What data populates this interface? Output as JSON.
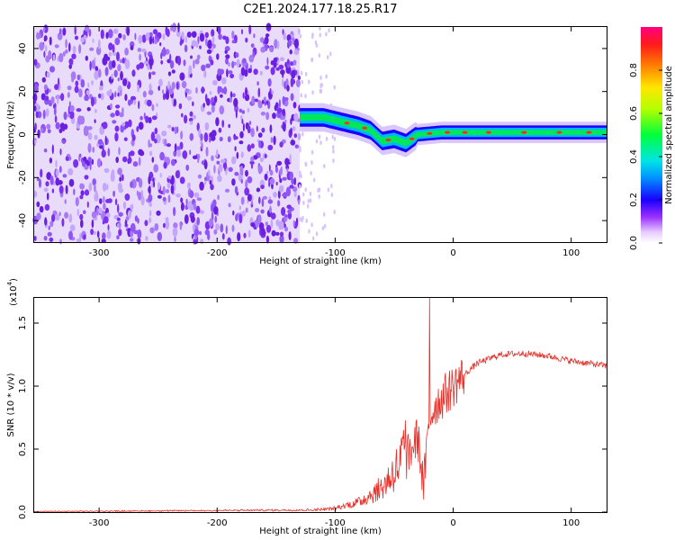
{
  "title": "C2E1.2024.177.18.25.R17",
  "chart_data": [
    {
      "type": "heatmap",
      "xlabel": "Height of straight line (km)",
      "ylabel": "Frequency (Hz)",
      "xlim": [
        -355,
        130
      ],
      "ylim": [
        -50,
        50
      ],
      "x_ticks": [
        "-300",
        "-200",
        "-100",
        "0",
        "100"
      ],
      "y_ticks": [
        "-40",
        "-20",
        "0",
        "20",
        "40"
      ],
      "colorbar": {
        "label": "Normalized spectral amplitude",
        "range": [
          0,
          1
        ],
        "ticks": [
          "0.0",
          "0.2",
          "0.4",
          "0.6",
          "0.8"
        ]
      },
      "features": {
        "noise_region_x": [
          -355,
          -130
        ],
        "signal_ridge": [
          {
            "x": -130,
            "y": 8
          },
          {
            "x": -110,
            "y": 8
          },
          {
            "x": -95,
            "y": 6
          },
          {
            "x": -80,
            "y": 4
          },
          {
            "x": -70,
            "y": 2
          },
          {
            "x": -60,
            "y": -3
          },
          {
            "x": -50,
            "y": -2
          },
          {
            "x": -40,
            "y": -4
          },
          {
            "x": -30,
            "y": 0
          },
          {
            "x": -10,
            "y": 1
          },
          {
            "x": 0,
            "y": 1
          },
          {
            "x": 50,
            "y": 1
          },
          {
            "x": 100,
            "y": 1
          },
          {
            "x": 130,
            "y": 1
          }
        ]
      }
    },
    {
      "type": "line",
      "xlabel": "Height of straight line (km)",
      "ylabel": "SNR (10 * v/v)",
      "y_scale_label": "(x10",
      "y_scale_exp": "4",
      "y_scale_close": ")",
      "xlim": [
        -355,
        130
      ],
      "ylim": [
        0,
        1.7
      ],
      "x_ticks": [
        "-300",
        "-200",
        "-100",
        "0",
        "100"
      ],
      "y_ticks": [
        "0.0",
        "0.5",
        "1.0",
        "1.5"
      ],
      "series_color": "#e8302a",
      "envelope": [
        {
          "x": -355,
          "y": 0.0
        },
        {
          "x": -120,
          "y": 0.01
        },
        {
          "x": -100,
          "y": 0.02
        },
        {
          "x": -80,
          "y": 0.06
        },
        {
          "x": -60,
          "y": 0.15
        },
        {
          "x": -45,
          "y": 0.3
        },
        {
          "x": -38,
          "y": 0.45
        },
        {
          "x": -30,
          "y": 0.6
        },
        {
          "x": -25,
          "y": 0.2
        },
        {
          "x": -20,
          "y": 0.75
        },
        {
          "x": -15,
          "y": 0.85
        },
        {
          "x": -5,
          "y": 0.95
        },
        {
          "x": 5,
          "y": 1.05
        },
        {
          "x": 20,
          "y": 1.18
        },
        {
          "x": 40,
          "y": 1.25
        },
        {
          "x": 60,
          "y": 1.26
        },
        {
          "x": 80,
          "y": 1.24
        },
        {
          "x": 100,
          "y": 1.2
        },
        {
          "x": 130,
          "y": 1.16
        }
      ],
      "spike": {
        "x": -20,
        "y": 1.7
      }
    }
  ]
}
